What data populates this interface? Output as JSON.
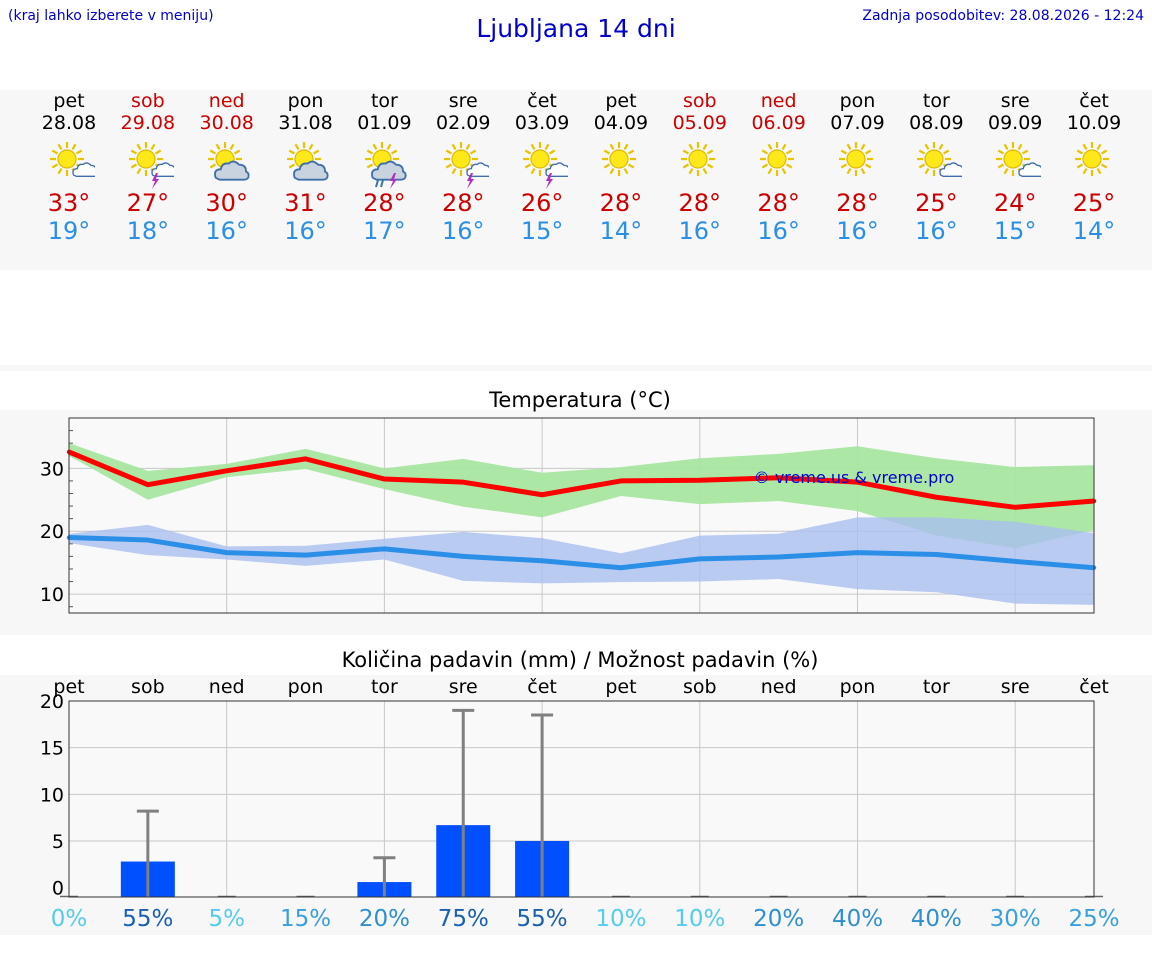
{
  "header": {
    "menu_note": "(kraj lahko izberete v meniju)",
    "title": "Ljubljana 14 dni",
    "update_note": "Zadnja posodobitev: 28.08.2026 - 12:24"
  },
  "colors": {
    "link_blue": "#0000cc",
    "weekend_red": "#cc0000",
    "tmax_line": "#ff0000",
    "tmin_line": "#2b8fe8",
    "tmax_band": "#a8e6a1",
    "tmin_band": "#aabff0",
    "rain_bar": "#0050ff",
    "error_bar": "#808080"
  },
  "days": [
    {
      "name": "pet",
      "date": "28.08",
      "weekend": false,
      "icon": "sun-cloud-icon",
      "tmax": "33°",
      "tmin": "19°"
    },
    {
      "name": "sob",
      "date": "29.08",
      "weekend": true,
      "icon": "sun-thunder-icon",
      "tmax": "27°",
      "tmin": "18°"
    },
    {
      "name": "ned",
      "date": "30.08",
      "weekend": true,
      "icon": "sun-cloudy-icon",
      "tmax": "30°",
      "tmin": "16°"
    },
    {
      "name": "pon",
      "date": "31.08",
      "weekend": false,
      "icon": "sun-cloudy-icon",
      "tmax": "31°",
      "tmin": "16°"
    },
    {
      "name": "tor",
      "date": "01.09",
      "weekend": false,
      "icon": "sun-rain-thunder-icon",
      "tmax": "28°",
      "tmin": "17°"
    },
    {
      "name": "sre",
      "date": "02.09",
      "weekend": false,
      "icon": "sun-thunder-icon",
      "tmax": "28°",
      "tmin": "16°"
    },
    {
      "name": "čet",
      "date": "03.09",
      "weekend": false,
      "icon": "sun-thunder-icon",
      "tmax": "26°",
      "tmin": "15°"
    },
    {
      "name": "pet",
      "date": "04.09",
      "weekend": false,
      "icon": "sun-icon",
      "tmax": "28°",
      "tmin": "14°"
    },
    {
      "name": "sob",
      "date": "05.09",
      "weekend": true,
      "icon": "sun-icon",
      "tmax": "28°",
      "tmin": "16°"
    },
    {
      "name": "ned",
      "date": "06.09",
      "weekend": true,
      "icon": "sun-icon",
      "tmax": "28°",
      "tmin": "16°"
    },
    {
      "name": "pon",
      "date": "07.09",
      "weekend": false,
      "icon": "sun-icon",
      "tmax": "28°",
      "tmin": "16°"
    },
    {
      "name": "tor",
      "date": "08.09",
      "weekend": false,
      "icon": "sun-cloud-icon",
      "tmax": "25°",
      "tmin": "16°"
    },
    {
      "name": "sre",
      "date": "09.09",
      "weekend": false,
      "icon": "sun-cloud-icon",
      "tmax": "24°",
      "tmin": "15°"
    },
    {
      "name": "čet",
      "date": "10.09",
      "weekend": false,
      "icon": "sun-icon",
      "tmax": "25°",
      "tmin": "14°"
    }
  ],
  "chart_data": [
    {
      "type": "line",
      "title": "Temperatura (°C)",
      "watermark": "© vreme.us & vreme.pro",
      "ylim": [
        7,
        38
      ],
      "yticks": [
        10,
        20,
        30
      ],
      "grid": true,
      "categories": [
        "28.08",
        "29.08",
        "30.08",
        "31.08",
        "01.09",
        "02.09",
        "03.09",
        "04.09",
        "05.09",
        "06.09",
        "07.09",
        "08.09",
        "09.09",
        "10.09"
      ],
      "series": [
        {
          "role": "tmax",
          "values": [
            32.6,
            27.4,
            29.6,
            31.5,
            28.3,
            27.8,
            25.8,
            28.0,
            28.1,
            28.5,
            27.8,
            25.4,
            23.8,
            24.8
          ],
          "band_high": [
            34.0,
            29.6,
            30.7,
            33.1,
            30.0,
            31.5,
            29.3,
            30.2,
            31.6,
            32.3,
            33.5,
            31.6,
            30.2,
            30.5
          ],
          "band_low": [
            32.0,
            25.0,
            28.6,
            29.9,
            26.7,
            23.9,
            22.2,
            25.6,
            24.3,
            24.8,
            23.2,
            19.3,
            17.3,
            20.2
          ]
        },
        {
          "role": "tmin",
          "values": [
            19.0,
            18.6,
            16.6,
            16.2,
            17.2,
            16.0,
            15.3,
            14.2,
            15.6,
            15.9,
            16.6,
            16.3,
            15.2,
            14.2
          ],
          "band_high": [
            19.6,
            21.0,
            17.6,
            17.7,
            18.8,
            19.9,
            18.9,
            16.5,
            19.3,
            19.6,
            22.2,
            22.2,
            21.5,
            19.7
          ],
          "band_low": [
            18.1,
            16.2,
            15.5,
            14.5,
            15.5,
            12.1,
            11.7,
            11.9,
            12.0,
            12.4,
            10.8,
            10.3,
            8.5,
            8.3
          ]
        }
      ]
    },
    {
      "type": "bar",
      "title": "Količina padavin (mm) / Možnost padavin (%)",
      "ylim": [
        -1,
        20
      ],
      "yticks": [
        0,
        5,
        10,
        15,
        20
      ],
      "grid": true,
      "categories": [
        "pet",
        "sob",
        "ned",
        "pon",
        "tor",
        "sre",
        "čet",
        "pet",
        "sob",
        "ned",
        "pon",
        "tor",
        "sre",
        "čet"
      ],
      "values": [
        0,
        2.8,
        0,
        0,
        0.6,
        6.7,
        5.0,
        0,
        0,
        0,
        0,
        0,
        0,
        0
      ],
      "error_high": [
        0,
        8.2,
        0,
        0,
        3.2,
        19.0,
        18.5,
        0,
        0,
        0,
        0,
        0,
        0,
        0
      ],
      "probability": [
        "0%",
        "55%",
        "5%",
        "15%",
        "20%",
        "75%",
        "55%",
        "10%",
        "10%",
        "20%",
        "40%",
        "40%",
        "30%",
        "25%"
      ],
      "probability_colors": [
        "#55ccee",
        "#1a5fb0",
        "#55ccee",
        "#3aa0dd",
        "#2f8fd0",
        "#1a5fb0",
        "#1a5fb0",
        "#55ccee",
        "#55ccee",
        "#2f8fd0",
        "#2f8fd0",
        "#2f8fd0",
        "#3aa0dd",
        "#3aa0dd"
      ]
    }
  ]
}
